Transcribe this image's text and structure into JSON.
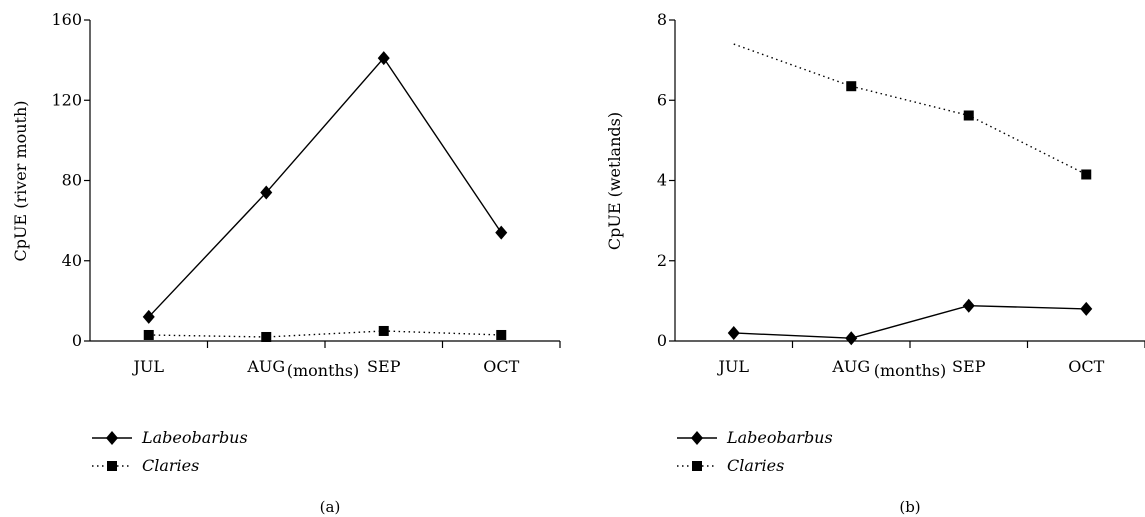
{
  "chart_data": [
    {
      "type": "line",
      "panel_label": "(a)",
      "categories": [
        "JUL",
        "AUG",
        "SEP",
        "OCT"
      ],
      "xlabel": "(months)",
      "ylabel": "CpUE (river mouth)",
      "ylim": [
        0,
        160
      ],
      "yticks": [
        0,
        40,
        80,
        120,
        160
      ],
      "series": [
        {
          "name": "Labeobarbus",
          "style": "solid",
          "marker": "diamond",
          "values": [
            12,
            74,
            141,
            54
          ]
        },
        {
          "name": "Claries",
          "style": "dotted",
          "marker": "square",
          "values": [
            3,
            2,
            5,
            3
          ]
        }
      ],
      "legend_position": "bottom-left"
    },
    {
      "type": "line",
      "panel_label": "(b)",
      "categories": [
        "JUL",
        "AUG",
        "SEP",
        "OCT"
      ],
      "xlabel": "(months)",
      "ylabel": "CpUE (wetlands)",
      "ylim": [
        0,
        8
      ],
      "yticks": [
        0,
        2,
        4,
        6,
        8
      ],
      "series": [
        {
          "name": "Labeobarbus",
          "style": "solid",
          "marker": "diamond",
          "values": [
            0.2,
            0.07,
            0.88,
            0.8
          ]
        },
        {
          "name": "Claries",
          "style": "dotted",
          "marker": "square",
          "values": [
            7.4,
            6.35,
            5.62,
            4.15
          ],
          "marker_hidden_indices": [
            0
          ]
        }
      ],
      "legend_position": "bottom-left"
    }
  ]
}
